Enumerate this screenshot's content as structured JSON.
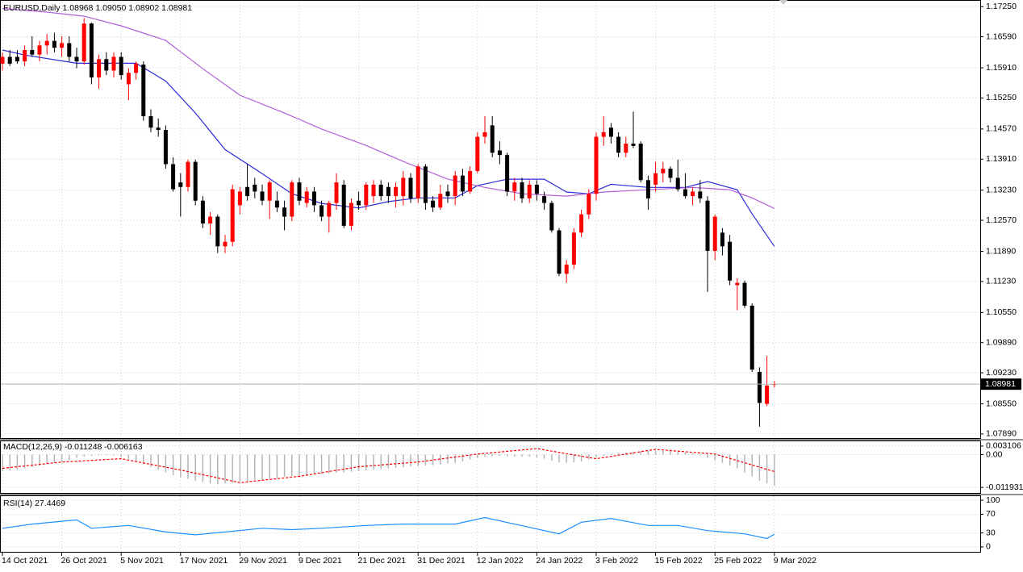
{
  "chart_data": [
    {
      "type": "candlestick",
      "title": "EURUSD,Daily  1.08968 1.09050 1.08902 1.08981",
      "up_color": "#ff0000",
      "down_color": "#000000",
      "grid": true,
      "ylim": [
        1.078,
        1.1736
      ],
      "yticks": [
        {
          "value": 1.1725,
          "label": "1.17250"
        },
        {
          "value": 1.1659,
          "label": "1.16590"
        },
        {
          "value": 1.1591,
          "label": "1.15910"
        },
        {
          "value": 1.1525,
          "label": "1.15250"
        },
        {
          "value": 1.1457,
          "label": "1.14570"
        },
        {
          "value": 1.1391,
          "label": "1.13910"
        },
        {
          "value": 1.1323,
          "label": "1.13230"
        },
        {
          "value": 1.1257,
          "label": "1.12570"
        },
        {
          "value": 1.1189,
          "label": "1.11890"
        },
        {
          "value": 1.1123,
          "label": "1.11230"
        },
        {
          "value": 1.1055,
          "label": "1.10550"
        },
        {
          "value": 1.0989,
          "label": "1.09890"
        },
        {
          "value": 1.0923,
          "label": "1.09230"
        },
        {
          "value": 1.0855,
          "label": "1.08550"
        },
        {
          "value": 1.0789,
          "label": "1.07890"
        }
      ],
      "last_price": 1.08981,
      "categories": [
        "14 Oct 2021",
        null,
        null,
        null,
        null,
        null,
        null,
        null,
        "26 Oct 2021",
        null,
        null,
        null,
        null,
        null,
        null,
        null,
        "5 Nov 2021",
        null,
        null,
        null,
        null,
        null,
        null,
        null,
        "17 Nov 2021",
        null,
        null,
        null,
        null,
        null,
        null,
        null,
        "29 Nov 2021",
        null,
        null,
        null,
        null,
        null,
        null,
        null,
        "9 Dec 2021",
        null,
        null,
        null,
        null,
        null,
        null,
        null,
        "21 Dec 2021",
        null,
        null,
        null,
        null,
        null,
        null,
        null,
        "31 Dec 2021",
        null,
        null,
        null,
        null,
        null,
        null,
        null,
        "12 Jan 2022",
        null,
        null,
        null,
        null,
        null,
        null,
        null,
        "24 Jan 2022",
        null,
        null,
        null,
        null,
        null,
        null,
        null,
        "3 Feb 2022",
        null,
        null,
        null,
        null,
        null,
        null,
        null,
        "15 Feb 2022",
        null,
        null,
        null,
        null,
        null,
        null,
        null,
        "25 Feb 2022",
        null,
        null,
        null,
        null,
        null,
        null,
        null,
        "9 Mar 2022"
      ],
      "candles": [
        [
          1.16,
          1.1625,
          1.1585,
          1.1615
        ],
        [
          1.1615,
          1.163,
          1.1595,
          1.16
        ],
        [
          1.1615,
          1.163,
          1.16,
          1.1605
        ],
        [
          1.1605,
          1.164,
          1.1595,
          1.163
        ],
        [
          1.163,
          1.166,
          1.1615,
          1.162
        ],
        [
          1.162,
          1.165,
          1.1605,
          1.164
        ],
        [
          1.164,
          1.1665,
          1.162,
          1.165
        ],
        [
          1.165,
          1.1668,
          1.1625,
          1.1635
        ],
        [
          1.1635,
          1.166,
          1.1615,
          1.1645
        ],
        [
          1.1645,
          1.166,
          1.1605,
          1.1615
        ],
        [
          1.1615,
          1.1635,
          1.159,
          1.1605
        ],
        [
          1.1605,
          1.17,
          1.1598,
          1.1688
        ],
        [
          1.1688,
          1.169,
          1.1555,
          1.157
        ],
        [
          1.157,
          1.162,
          1.1545,
          1.161
        ],
        [
          1.161,
          1.1625,
          1.1575,
          1.1585
        ],
        [
          1.1585,
          1.1625,
          1.157,
          1.1615
        ],
        [
          1.1615,
          1.1625,
          1.1565,
          1.1575
        ],
        [
          1.1555,
          1.159,
          1.152,
          1.158
        ],
        [
          1.158,
          1.1605,
          1.1565,
          1.16
        ],
        [
          1.1598,
          1.1605,
          1.1475,
          1.1485
        ],
        [
          1.1485,
          1.15,
          1.145,
          1.146
        ],
        [
          1.146,
          1.148,
          1.144,
          1.1455
        ],
        [
          1.1455,
          1.1465,
          1.137,
          1.138
        ],
        [
          1.138,
          1.1395,
          1.132,
          1.1325
        ],
        [
          1.134,
          1.136,
          1.1265,
          1.133
        ],
        [
          1.133,
          1.139,
          1.132,
          1.1385
        ],
        [
          1.1385,
          1.139,
          1.129,
          1.13
        ],
        [
          1.13,
          1.131,
          1.124,
          1.125
        ],
        [
          1.125,
          1.1275,
          1.1225,
          1.1265
        ],
        [
          1.1265,
          1.127,
          1.1185,
          1.12
        ],
        [
          1.12,
          1.1225,
          1.1185,
          1.121
        ],
        [
          1.121,
          1.1335,
          1.12,
          1.1325
        ],
        [
          1.129,
          1.133,
          1.127,
          1.132
        ],
        [
          1.133,
          1.138,
          1.13,
          1.131
        ],
        [
          1.1335,
          1.135,
          1.1305,
          1.132
        ],
        [
          1.132,
          1.1335,
          1.129,
          1.13
        ],
        [
          1.13,
          1.1345,
          1.126,
          1.134
        ],
        [
          1.13,
          1.132,
          1.1275,
          1.1285
        ],
        [
          1.1285,
          1.13,
          1.1235,
          1.1265
        ],
        [
          1.1265,
          1.1345,
          1.1255,
          1.134
        ],
        [
          1.134,
          1.135,
          1.129,
          1.13
        ],
        [
          1.1295,
          1.133,
          1.1285,
          1.132
        ],
        [
          1.132,
          1.133,
          1.1275,
          1.129
        ],
        [
          1.129,
          1.13,
          1.1255,
          1.1265
        ],
        [
          1.1265,
          1.13,
          1.123,
          1.1295
        ],
        [
          1.1295,
          1.136,
          1.128,
          1.134
        ],
        [
          1.1335,
          1.1345,
          1.124,
          1.1245
        ],
        [
          1.1245,
          1.1305,
          1.1235,
          1.1295
        ],
        [
          1.13,
          1.132,
          1.128,
          1.129
        ],
        [
          1.129,
          1.134,
          1.128,
          1.1335
        ],
        [
          1.131,
          1.1345,
          1.1295,
          1.1335
        ],
        [
          1.1335,
          1.1345,
          1.13,
          1.131
        ],
        [
          1.133,
          1.134,
          1.1295,
          1.131
        ],
        [
          1.131,
          1.134,
          1.1285,
          1.133
        ],
        [
          1.131,
          1.1365,
          1.129,
          1.135
        ],
        [
          1.135,
          1.136,
          1.1295,
          1.1305
        ],
        [
          1.1305,
          1.138,
          1.1295,
          1.1375
        ],
        [
          1.1375,
          1.138,
          1.128,
          1.1295
        ],
        [
          1.13,
          1.131,
          1.1275,
          1.1285
        ],
        [
          1.1285,
          1.1335,
          1.128,
          1.1315
        ],
        [
          1.132,
          1.1335,
          1.1295,
          1.131
        ],
        [
          1.131,
          1.1365,
          1.129,
          1.1355
        ],
        [
          1.1355,
          1.137,
          1.131,
          1.132
        ],
        [
          1.132,
          1.1375,
          1.1315,
          1.1365
        ],
        [
          1.1365,
          1.145,
          1.136,
          1.144
        ],
        [
          1.144,
          1.1485,
          1.1425,
          1.145
        ],
        [
          1.1465,
          1.1485,
          1.1395,
          1.1405
        ],
        [
          1.141,
          1.143,
          1.138,
          1.14
        ],
        [
          1.14,
          1.1405,
          1.131,
          1.132
        ],
        [
          1.132,
          1.135,
          1.13,
          1.134
        ],
        [
          1.134,
          1.135,
          1.1295,
          1.1305
        ],
        [
          1.1305,
          1.1345,
          1.1295,
          1.1335
        ],
        [
          1.1335,
          1.1345,
          1.13,
          1.1315
        ],
        [
          1.131,
          1.132,
          1.128,
          1.1295
        ],
        [
          1.1295,
          1.13,
          1.123,
          1.1235
        ],
        [
          1.1235,
          1.124,
          1.1135,
          1.114
        ],
        [
          1.114,
          1.117,
          1.112,
          1.116
        ],
        [
          1.116,
          1.124,
          1.115,
          1.123
        ],
        [
          1.123,
          1.128,
          1.122,
          1.127
        ],
        [
          1.127,
          1.1325,
          1.126,
          1.1315
        ],
        [
          1.1315,
          1.145,
          1.13,
          1.144
        ],
        [
          1.144,
          1.1485,
          1.142,
          1.145
        ],
        [
          1.146,
          1.147,
          1.1425,
          1.144
        ],
        [
          1.144,
          1.145,
          1.1395,
          1.1405
        ],
        [
          1.1405,
          1.144,
          1.1395,
          1.1425
        ],
        [
          1.1425,
          1.1495,
          1.1415,
          1.142
        ],
        [
          1.1425,
          1.143,
          1.134,
          1.1345
        ],
        [
          1.1345,
          1.1355,
          1.128,
          1.1305
        ],
        [
          1.1335,
          1.1385,
          1.132,
          1.136
        ],
        [
          1.136,
          1.1385,
          1.134,
          1.137
        ],
        [
          1.137,
          1.1375,
          1.134,
          1.135
        ],
        [
          1.135,
          1.139,
          1.132,
          1.1325
        ],
        [
          1.1325,
          1.136,
          1.1305,
          1.131
        ],
        [
          1.131,
          1.133,
          1.129,
          1.132
        ],
        [
          1.132,
          1.1345,
          1.1295,
          1.1305
        ],
        [
          1.13,
          1.131,
          1.11,
          1.119
        ],
        [
          1.119,
          1.127,
          1.117,
          1.1265
        ],
        [
          1.123,
          1.124,
          1.118,
          1.12
        ],
        [
          1.121,
          1.1225,
          1.1115,
          1.1125
        ],
        [
          1.1115,
          1.113,
          1.106,
          1.112
        ],
        [
          1.112,
          1.1125,
          1.1065,
          1.107
        ],
        [
          1.107,
          1.1075,
          1.0925,
          1.093
        ],
        [
          1.0925,
          1.0935,
          1.0805,
          1.0857
        ],
        [
          1.0855,
          1.096,
          1.085,
          1.0895
        ],
        [
          1.08968,
          1.0905,
          1.08902,
          1.08981
        ]
      ],
      "series": [
        {
          "color": "#2b2bd9",
          "x": [
            0,
            3,
            10,
            15,
            18,
            22,
            26,
            30,
            35,
            39,
            43,
            48,
            52,
            56,
            61,
            64,
            68,
            73,
            76,
            79,
            82,
            87,
            92,
            95,
            99,
            101,
            104
          ],
          "values": [
            1.163,
            1.1619,
            1.1601,
            1.1601,
            1.1601,
            1.1562,
            1.1492,
            1.1412,
            1.1359,
            1.1315,
            1.1294,
            1.1284,
            1.1298,
            1.1306,
            1.1306,
            1.1333,
            1.1347,
            1.1347,
            1.1319,
            1.1315,
            1.1336,
            1.1329,
            1.1329,
            1.1342,
            1.1324,
            1.1271,
            1.12
          ]
        },
        {
          "color": "#b05fd6",
          "x": [
            0,
            6,
            11,
            16,
            22,
            27,
            32,
            38,
            43,
            49,
            54,
            60,
            65,
            70,
            76,
            81,
            87,
            93,
            98,
            101,
            104
          ],
          "values": [
            1.1721,
            1.1713,
            1.1704,
            1.1683,
            1.1651,
            1.1589,
            1.1531,
            1.1492,
            1.1457,
            1.1421,
            1.1386,
            1.1347,
            1.1329,
            1.1315,
            1.131,
            1.1319,
            1.1324,
            1.1329,
            1.1324,
            1.1306,
            1.1283
          ]
        }
      ]
    },
    {
      "type": "macd",
      "title": "MACD(12,26,9) -0.011248 -0.006163",
      "ylim": [
        -0.01395,
        0.00484
      ],
      "yticks": [
        0.003106,
        {
          "value": 0,
          "label": "0.00"
        },
        -0.011931
      ],
      "histogram_color": "#b4b4b4",
      "histogram": [
        -0.006,
        -0.0058,
        -0.0055,
        -0.005,
        -0.0045,
        -0.004,
        -0.0035,
        -0.003,
        -0.0025,
        -0.002,
        -0.0012,
        -0.0008,
        -0.0005,
        -0.0003,
        -0.0002,
        -0.0003,
        -0.0008,
        -0.0015,
        -0.0025,
        -0.0035,
        -0.0045,
        -0.0055,
        -0.0065,
        -0.0075,
        -0.0082,
        -0.0088,
        -0.0095,
        -0.01,
        -0.0105,
        -0.0108,
        -0.0105,
        -0.0102,
        -0.0098,
        -0.0095,
        -0.0092,
        -0.009,
        -0.0088,
        -0.0085,
        -0.008,
        -0.0078,
        -0.0076,
        -0.0074,
        -0.0072,
        -0.007,
        -0.0068,
        -0.0066,
        -0.0065,
        -0.0062,
        -0.006,
        -0.0057,
        -0.0055,
        -0.0053,
        -0.005,
        -0.0048,
        -0.0046,
        -0.0043,
        -0.0042,
        -0.004,
        -0.0038,
        -0.0036,
        -0.0032,
        -0.003,
        -0.0025,
        -0.0018,
        -0.0012,
        -0.0008,
        -0.0006,
        -0.0005,
        -0.0006,
        -0.0007,
        -0.0007,
        -0.0008,
        -0.001,
        -0.0015,
        -0.0022,
        -0.0028,
        -0.003,
        -0.0028,
        -0.0025,
        -0.0018,
        -0.001,
        -0.0004,
        0.0002,
        0.0006,
        0.0008,
        0.001,
        0.0012,
        0.0013,
        0.0014,
        0.0014,
        0.0012,
        0.001,
        0.0008,
        0.0005,
        -0.0003,
        -0.0012,
        -0.002,
        -0.003,
        -0.004,
        -0.005,
        -0.0065,
        -0.008,
        -0.0095,
        -0.0105,
        -0.011248
      ],
      "series": [
        {
          "color": "#ff0000",
          "x": [
            0,
            8,
            16,
            24,
            32,
            40,
            48,
            56,
            64,
            72,
            80,
            88,
            96,
            104
          ],
          "values": [
            -0.005,
            -0.0027,
            -0.0015,
            -0.0056,
            -0.0102,
            -0.0079,
            -0.0044,
            -0.0027,
            0.0002,
            0.0022,
            -0.0015,
            0.0019,
            0.0002,
            -0.006163
          ]
        }
      ]
    },
    {
      "type": "line",
      "title": "RSI(14) 27.4469",
      "ylim": [
        -10.5,
        108.8
      ],
      "yticks": [
        100,
        70,
        30,
        0
      ],
      "series": [
        {
          "color": "#1e90ff",
          "x": [
            0,
            4,
            10,
            12,
            17,
            22,
            26,
            30,
            35,
            39,
            43,
            49,
            54,
            61,
            65,
            69,
            75,
            78,
            82,
            87,
            91,
            95,
            100,
            103,
            104
          ],
          "values": [
            40,
            49,
            58,
            40,
            46,
            32,
            26,
            32,
            40,
            37,
            40,
            46,
            49,
            49,
            63,
            49,
            28,
            53,
            61,
            46,
            46,
            35,
            28,
            18,
            27.4469
          ]
        }
      ]
    }
  ]
}
